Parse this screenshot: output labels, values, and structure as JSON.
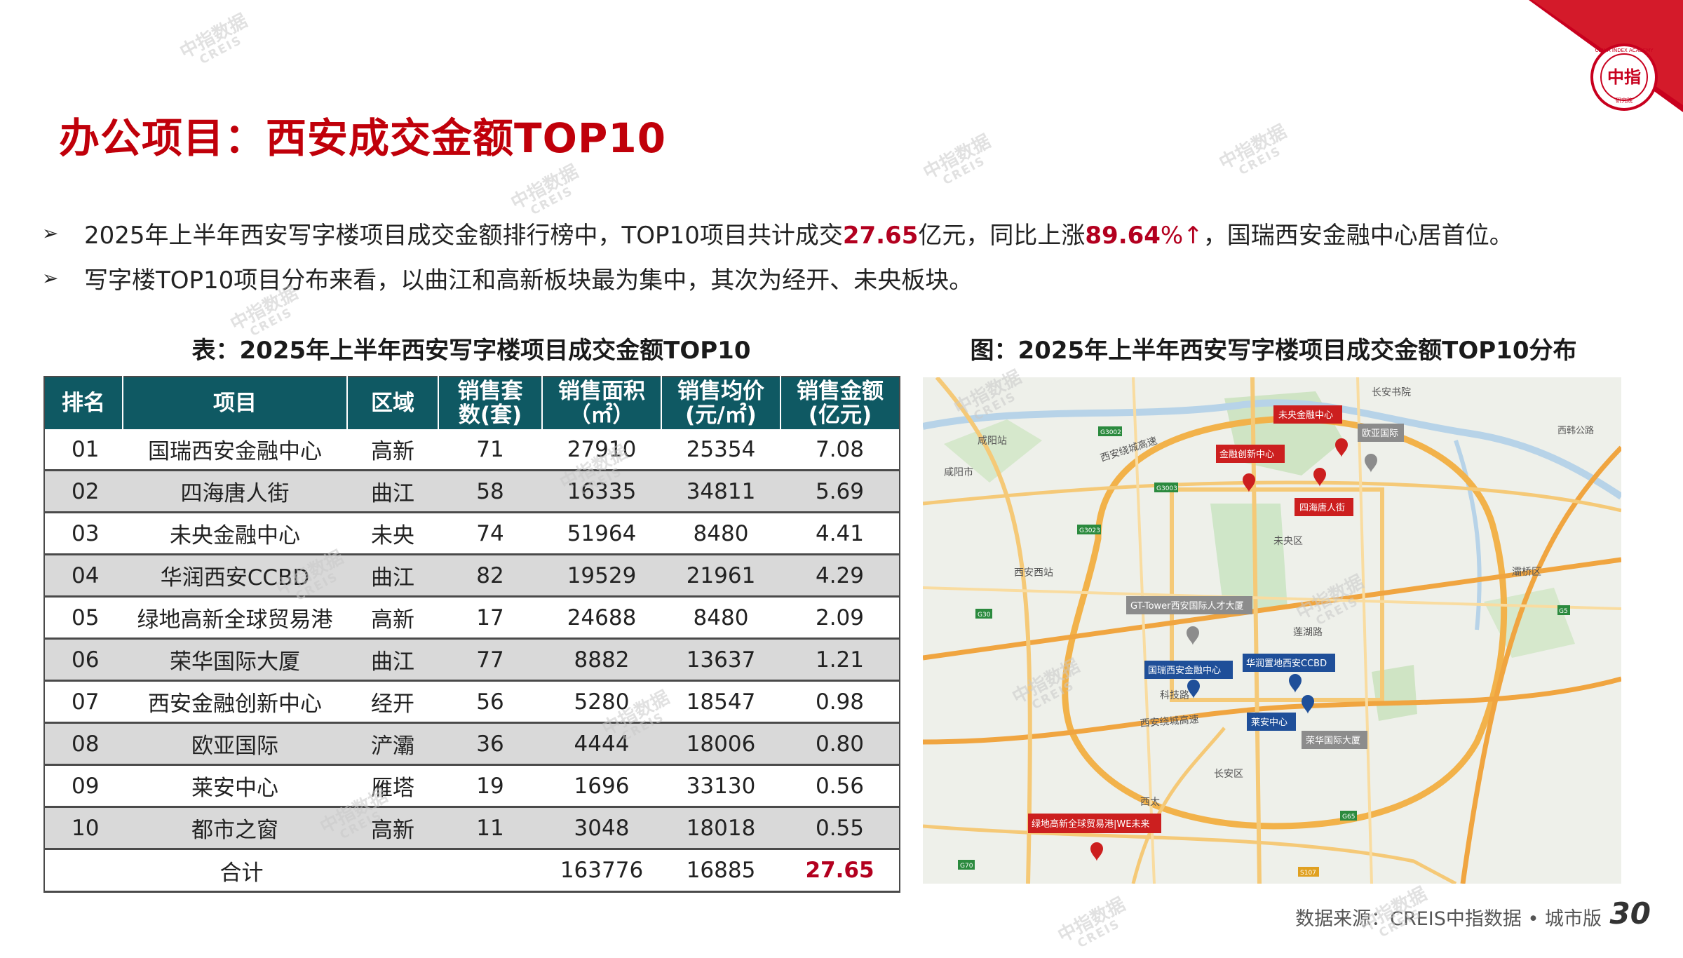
{
  "header": {
    "title": "办公项目：西安成交金额TOP10",
    "logo": {
      "top": "CHINA INDEX ACADEMY",
      "center": "中指",
      "bottom": "研究院",
      "accent": "#c8001e"
    }
  },
  "bullets": [
    {
      "text_parts": [
        "2025年上半年西安写字楼项目成交金额排行榜中，TOP10项目共计成交",
        "27.65",
        "亿元，同比上涨",
        "89.64",
        "%↑",
        "，国瑞西安金融中心居首位。"
      ]
    },
    {
      "text_parts": [
        "写字楼TOP10项目分布来看，以曲江和高新板块最为集中，其次为经开、未央板块。"
      ]
    }
  ],
  "table": {
    "caption": "表：2025年上半年西安写字楼项目成交金额TOP10",
    "header_bg": "#0f5963",
    "columns": [
      {
        "line1": "排名",
        "line2": ""
      },
      {
        "line1": "项目",
        "line2": ""
      },
      {
        "line1": "区域",
        "line2": ""
      },
      {
        "line1": "销售套",
        "line2": "数(套)"
      },
      {
        "line1": "销售面积",
        "line2": "（㎡）"
      },
      {
        "line1": "销售均价",
        "line2": "(元/㎡)"
      },
      {
        "line1": "销售金额",
        "line2": "(亿元)"
      }
    ],
    "rows": [
      [
        "01",
        "国瑞西安金融中心",
        "高新",
        "71",
        "27910",
        "25354",
        "7.08"
      ],
      [
        "02",
        "四海唐人街",
        "曲江",
        "58",
        "16335",
        "34811",
        "5.69"
      ],
      [
        "03",
        "未央金融中心",
        "未央",
        "74",
        "51964",
        "8480",
        "4.41"
      ],
      [
        "04",
        "华润西安CCBD",
        "曲江",
        "82",
        "19529",
        "21961",
        "4.29"
      ],
      [
        "05",
        "绿地高新全球贸易港",
        "高新",
        "17",
        "24688",
        "8480",
        "2.09"
      ],
      [
        "06",
        "荣华国际大厦",
        "曲江",
        "77",
        "8882",
        "13637",
        "1.21"
      ],
      [
        "07",
        "西安金融创新中心",
        "经开",
        "56",
        "5280",
        "18547",
        "0.98"
      ],
      [
        "08",
        "欧亚国际",
        "浐灞",
        "36",
        "4444",
        "18006",
        "0.80"
      ],
      [
        "09",
        "莱安中心",
        "雁塔",
        "19",
        "1696",
        "33130",
        "0.56"
      ],
      [
        "10",
        "都市之窗",
        "高新",
        "11",
        "3048",
        "18018",
        "0.55"
      ]
    ],
    "total": {
      "label": "合计",
      "area": "163776",
      "price": "16885",
      "amount": "27.65"
    }
  },
  "map": {
    "caption": "图：2025年上半年西安写字楼项目成交金额TOP10分布",
    "place_labels": [
      "长安书院",
      "西韩公路",
      "咸阳站",
      "咸阳市",
      "西安绕城高速",
      "未央区",
      "西安西站",
      "灞桥区",
      "莲湖路",
      "科技路",
      "西安绕城高速",
      "长安区",
      "西太"
    ],
    "road_shields": [
      "G3002",
      "G3003",
      "G3023",
      "G30",
      "G5",
      "G65",
      "S107",
      "G70"
    ],
    "markers": [
      {
        "label": "未央金融中心",
        "color": "#cc1f1f"
      },
      {
        "label": "欧亚国际",
        "color": "#8c8c8c"
      },
      {
        "label": "金融创新中心",
        "color": "#cc1f1f"
      },
      {
        "label": "四海唐人街",
        "color": "#cc1f1f"
      },
      {
        "label": "GT-Tower西安国际人才大厦",
        "color": "#8c8c8c"
      },
      {
        "label": "国瑞西安金融中心",
        "color": "#1f4f99"
      },
      {
        "label": "华润置地西安CCBD",
        "color": "#1f4f99"
      },
      {
        "label": "莱安中心",
        "color": "#1f4f99"
      },
      {
        "label": "荣华国际大厦",
        "color": "#8c8c8c"
      },
      {
        "label": "绿地高新全球贸易港|WE未来",
        "color": "#cc1f1f"
      }
    ]
  },
  "footer": {
    "source": "数据来源：CREIS中指数据 • 城市版",
    "page": "30"
  },
  "watermark": {
    "cn": "中指数据",
    "en": "CREIS"
  }
}
